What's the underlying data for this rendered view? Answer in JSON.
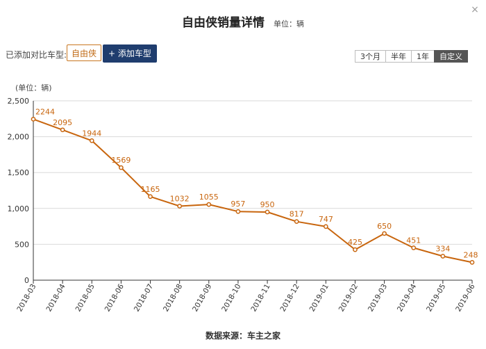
{
  "window": {
    "close_glyph": "×"
  },
  "header": {
    "title": "自由侠销量详情",
    "unit": "单位：辆"
  },
  "compare": {
    "added_label": "已添加对比车型:",
    "model_tag": "自由侠",
    "add_button": "+ 添加车型"
  },
  "range_buttons": [
    {
      "label": "3个月",
      "active": false
    },
    {
      "label": "半年",
      "active": false
    },
    {
      "label": "1年",
      "active": false
    },
    {
      "label": "自定义",
      "active": true
    }
  ],
  "footer": {
    "source": "数据来源：车主之家"
  },
  "colors": {
    "series": "#c8650d",
    "grid": "#d9d9d9",
    "axis": "#333333"
  },
  "chart_data": {
    "type": "line",
    "title": "自由侠销量详情",
    "ylabel": "(单位：辆)",
    "xlabel": "",
    "ylim": [
      0,
      2500
    ],
    "yticks": [
      0,
      500,
      1000,
      1500,
      2000,
      2500
    ],
    "ytick_labels": [
      "0",
      "500",
      "1,000",
      "1,500",
      "2,000",
      "2,500"
    ],
    "grid": true,
    "x": [
      "2018-03",
      "2018-04",
      "2018-05",
      "2018-06",
      "2018-07",
      "2018-08",
      "2018-09",
      "2018-10",
      "2018-11",
      "2018-12",
      "2019-01",
      "2019-02",
      "2019-03",
      "2019-04",
      "2019-05",
      "2019-06"
    ],
    "series": [
      {
        "name": "",
        "values": [
          2244,
          2095,
          1944,
          1569,
          1165,
          1032,
          1055,
          957,
          950,
          817,
          747,
          425,
          650,
          451,
          334,
          248
        ],
        "labels": [
          "2244",
          "2095",
          "1944",
          "1569",
          "1165",
          "1032",
          "1055",
          "957",
          "950",
          "817",
          "747",
          "425",
          "650",
          "451",
          "334",
          "248"
        ]
      }
    ]
  }
}
